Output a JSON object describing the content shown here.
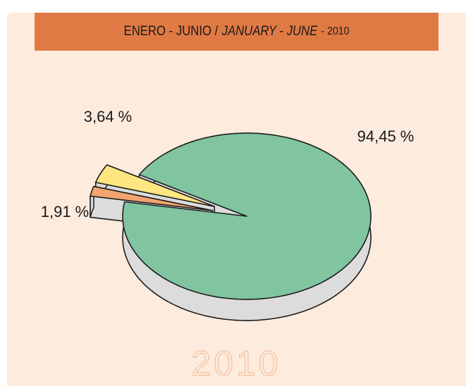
{
  "chart_data": {
    "type": "pie",
    "title_parts": [
      "ENERO - JUNIO /",
      "JANUARY - JUNE",
      "- 2010"
    ],
    "watermark": "2010",
    "categories": [
      null,
      null,
      null
    ],
    "values": [
      94.45,
      3.64,
      1.91
    ],
    "value_labels": [
      "94,45 %",
      "3,64 %",
      "1,91 %"
    ],
    "colors": [
      "#80c4a0",
      "#ffe680",
      "#f4a46e"
    ]
  }
}
